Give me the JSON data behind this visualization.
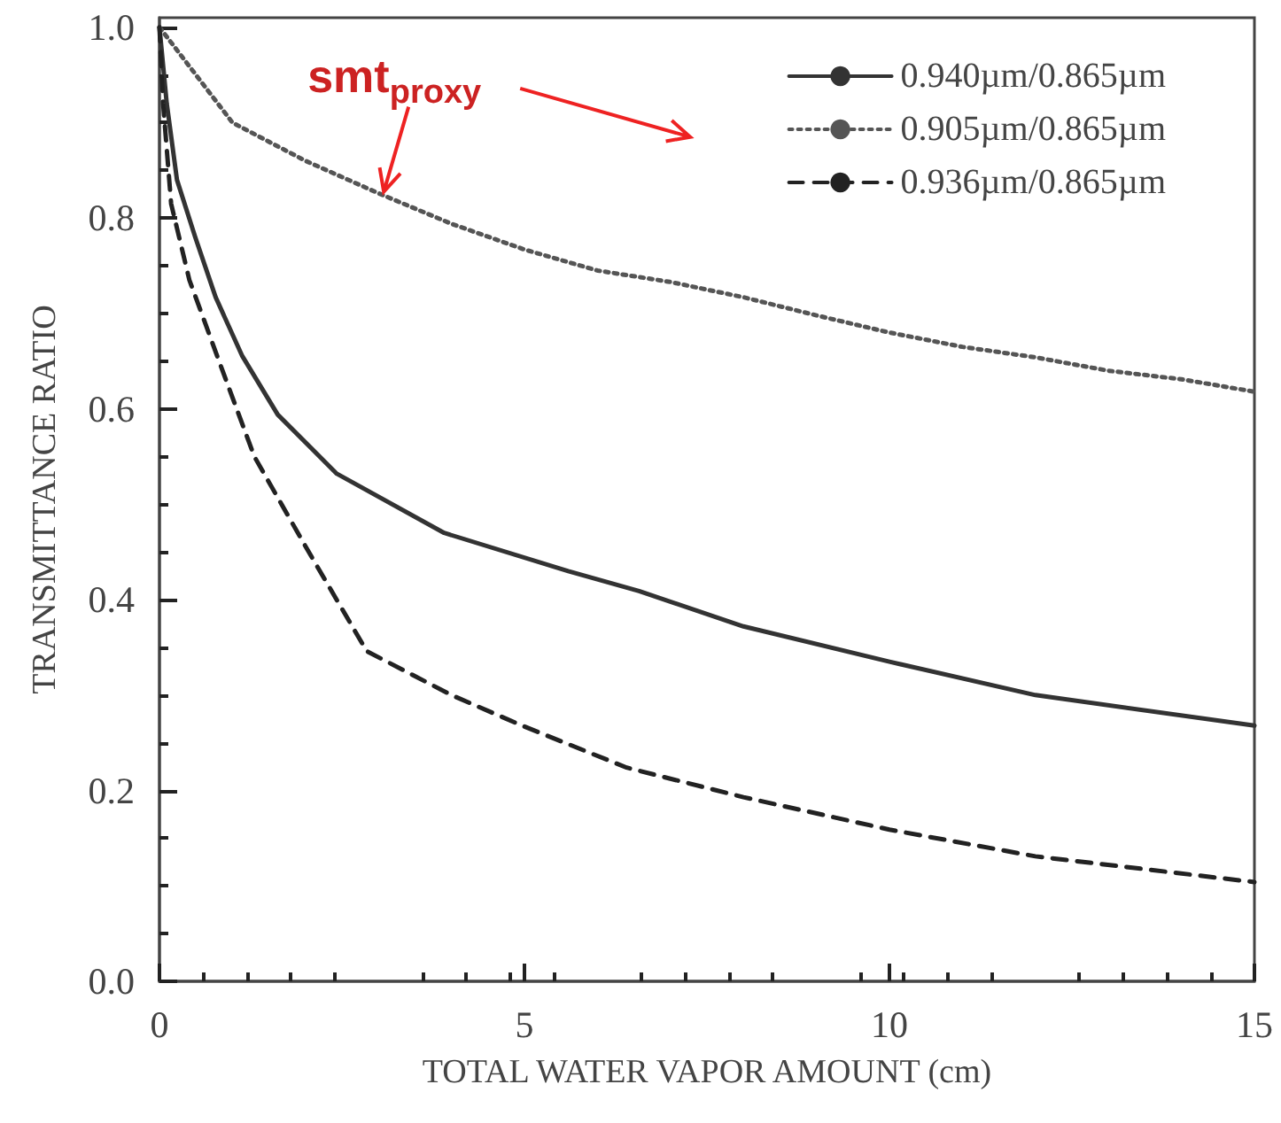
{
  "chart_data": {
    "type": "line",
    "xlabel": "TOTAL WATER VAPOR AMOUNT (cm)",
    "ylabel": "TRANSMITTANCE RATIO",
    "xlim": [
      0,
      15
    ],
    "xticks": [
      0,
      5,
      10,
      15
    ],
    "ylim": [
      0,
      1.01
    ],
    "yticks": [
      {
        "value": 0,
        "label": "0.0"
      },
      0.2,
      0.4,
      0.6,
      0.8,
      {
        "value": 1,
        "label": "1.0"
      }
    ],
    "grid": false,
    "legend": "top right",
    "annotations": [
      {
        "text": "smt$_{proxy}$",
        "x": 3,
        "y": 0.82
      }
    ],
    "series": [
      {
        "name": "0.940µm/0.865µm",
        "color": "#333333",
        "line_style": "solid",
        "x": [
          0,
          0.1,
          0.24,
          0.49,
          0.77,
          1.13,
          1.62,
          2.43,
          3.9,
          5.6,
          6.57,
          8,
          10,
          12,
          15
        ],
        "values": [
          1.0,
          0.92,
          0.84,
          0.78,
          0.717,
          0.656,
          0.594,
          0.532,
          0.47,
          0.43,
          0.409,
          0.372,
          0.335,
          0.3,
          0.268
        ]
      },
      {
        "name": "0.905µm/0.865µm",
        "color": "#555555",
        "line_style": "dotted",
        "x": [
          0,
          0.3,
          1,
          2,
          3,
          4,
          5,
          6,
          7,
          8,
          9,
          10,
          11,
          12,
          13,
          14,
          15
        ],
        "values": [
          1.0,
          0.97,
          0.9,
          0.86,
          0.826,
          0.794,
          0.767,
          0.745,
          0.733,
          0.717,
          0.698,
          0.68,
          0.665,
          0.654,
          0.64,
          0.631,
          0.618
        ]
      },
      {
        "name": "0.936µm/0.865µm",
        "color": "#222222",
        "line_style": "dashed",
        "x": [
          0,
          0.05,
          0.16,
          0.41,
          0.85,
          1.3,
          2.03,
          2.84,
          4,
          5,
          6.4,
          8,
          10,
          12,
          15
        ],
        "values": [
          1.0,
          0.92,
          0.815,
          0.735,
          0.643,
          0.55,
          0.452,
          0.346,
          0.3,
          0.267,
          0.224,
          0.193,
          0.159,
          0.131,
          0.104
        ]
      }
    ]
  }
}
